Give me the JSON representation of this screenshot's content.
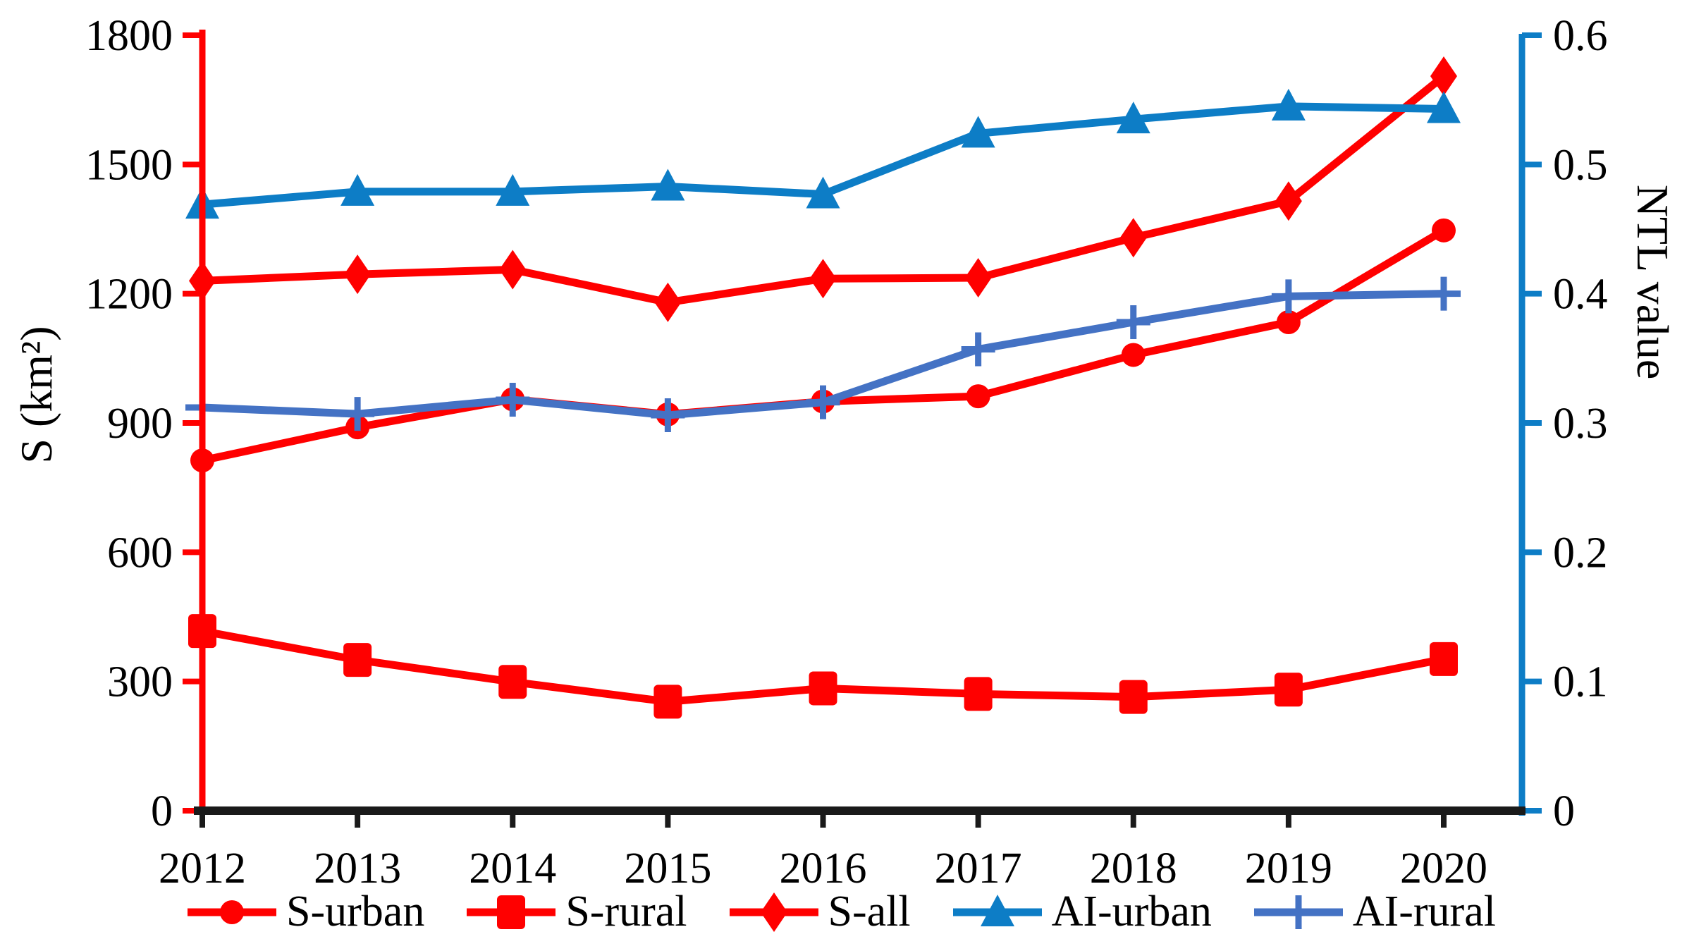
{
  "chart_data": {
    "type": "line",
    "x_labels": [
      "2012",
      "2013",
      "2014",
      "2015",
      "2016",
      "2017",
      "2018",
      "2019",
      "2020"
    ],
    "axes": {
      "left": {
        "label": "S (km²)",
        "min": 0,
        "max": 1800,
        "ticks": [
          0,
          300,
          600,
          900,
          1200,
          1500,
          1800
        ],
        "tick_labels": [
          "0",
          "300",
          "600",
          "900",
          "1200",
          "1500",
          "1800"
        ],
        "axis_color": "#FF0000",
        "text_color": "#000000"
      },
      "right": {
        "label": "NTL value",
        "min": 0,
        "max": 0.6,
        "ticks": [
          0,
          0.1,
          0.2,
          0.3,
          0.4,
          0.5,
          0.6
        ],
        "tick_labels": [
          "0",
          "0.1",
          "0.2",
          "0.3",
          "0.4",
          "0.5",
          "0.6"
        ],
        "axis_color": "#0D7DC6",
        "text_color": "#000000"
      },
      "bottom": {
        "axis_color": "#1A1A1A"
      }
    },
    "series": [
      {
        "name": "S-urban",
        "axis": "left",
        "marker": "circle",
        "color": "#FF0000",
        "values": [
          813,
          890,
          955,
          920,
          950,
          962,
          1058,
          1134,
          1347
        ]
      },
      {
        "name": "S-rural",
        "axis": "left",
        "marker": "square",
        "color": "#FF0000",
        "values": [
          417,
          350,
          299,
          253,
          284,
          271,
          264,
          281,
          352
        ]
      },
      {
        "name": "S-all",
        "axis": "left",
        "marker": "diamond",
        "color": "#FF0000",
        "values": [
          1230,
          1245,
          1256,
          1180,
          1235,
          1237,
          1330,
          1415,
          1705
        ]
      },
      {
        "name": "AI-urban",
        "axis": "right",
        "marker": "triangle",
        "color": "#0D7DC6",
        "values": [
          0.469,
          0.479,
          0.479,
          0.483,
          0.477,
          0.524,
          0.535,
          0.545,
          0.543
        ]
      },
      {
        "name": "AI-rural",
        "axis": "right",
        "marker": "plus",
        "color": "#4472C4",
        "values": [
          0.312,
          0.307,
          0.318,
          0.306,
          0.316,
          0.357,
          0.378,
          0.398,
          0.4
        ]
      }
    ],
    "legend_position": "bottom",
    "grid": false
  }
}
